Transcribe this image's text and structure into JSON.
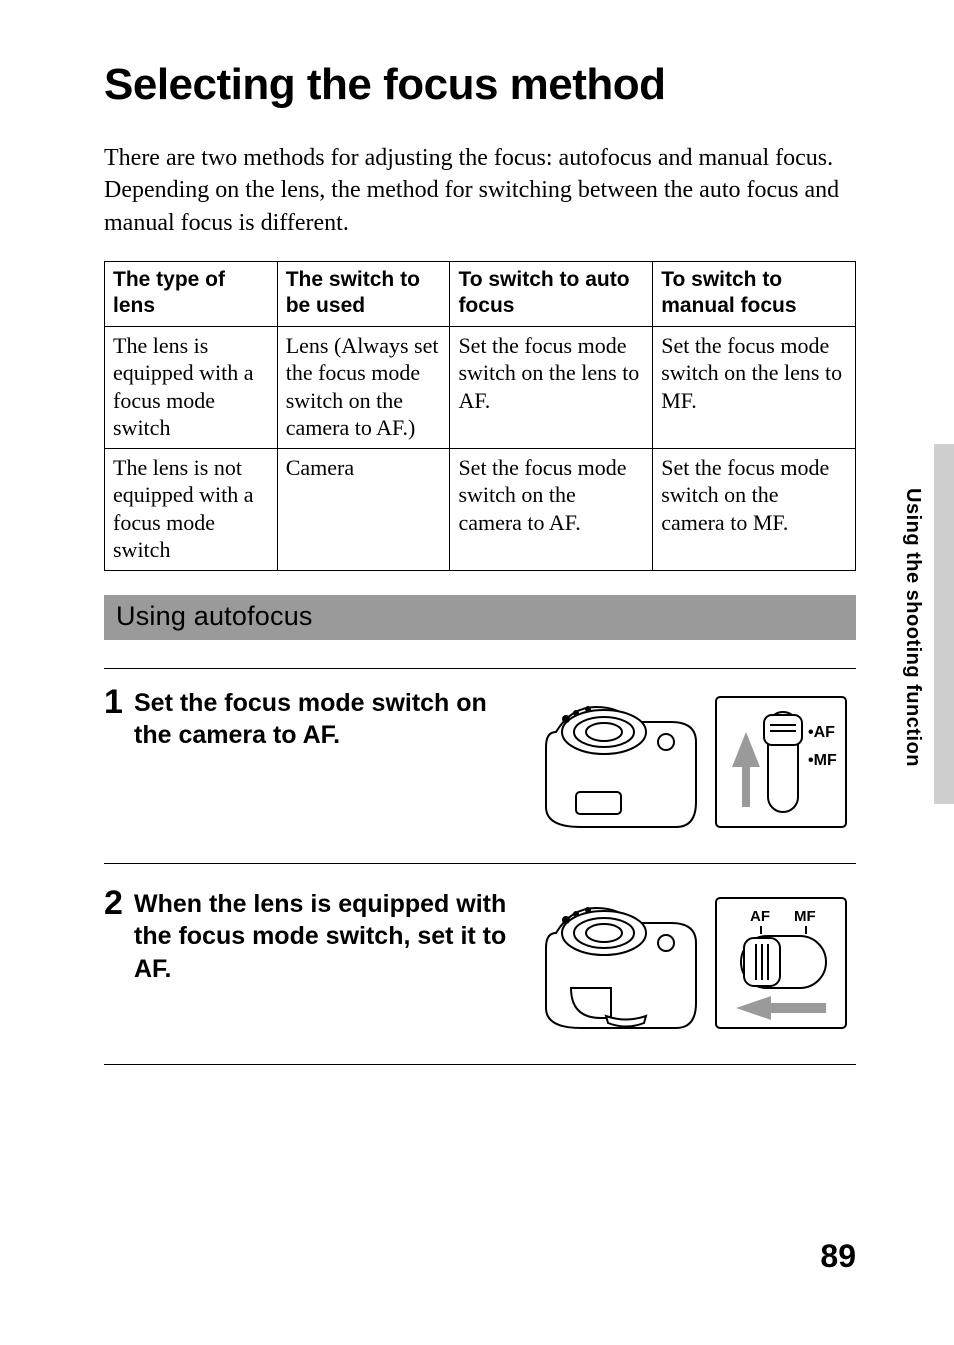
{
  "title": "Selecting the focus method",
  "intro": "There are two methods for adjusting the focus: autofocus and manual focus. Depending on the lens, the method for switching between the auto focus and manual focus is different.",
  "table": {
    "headers": [
      "The type of lens",
      "The switch to be used",
      "To switch to auto focus",
      "To switch to manual focus"
    ],
    "rows": [
      [
        "The lens is equipped with a focus mode switch",
        "Lens (Always set the focus mode switch on the camera to AF.)",
        "Set the focus mode switch on the lens to AF.",
        "Set the focus mode switch on the lens to MF."
      ],
      [
        "The lens is not equipped with a focus mode switch",
        "Camera",
        "Set the focus mode switch on the camera to AF.",
        "Set the focus mode switch on the camera to MF."
      ]
    ],
    "col_widths": [
      "23%",
      "23%",
      "27%",
      "27%"
    ]
  },
  "section_heading": "Using autofocus",
  "steps": [
    {
      "num": "1",
      "text": "Set the focus mode switch on the camera to AF."
    },
    {
      "num": "2",
      "text": "When the lens is equipped with the focus mode switch, set it to AF."
    }
  ],
  "fig1": {
    "af": "AF",
    "mf": "MF",
    "bullet": "•"
  },
  "fig2": {
    "af": "AF",
    "mf": "MF"
  },
  "side_label": "Using the shooting function",
  "page_number": "89",
  "colors": {
    "section_bar": "#9a9a9a",
    "tab": "#cfcfcf",
    "arrow": "#9a9a9a",
    "stroke": "#000000"
  }
}
